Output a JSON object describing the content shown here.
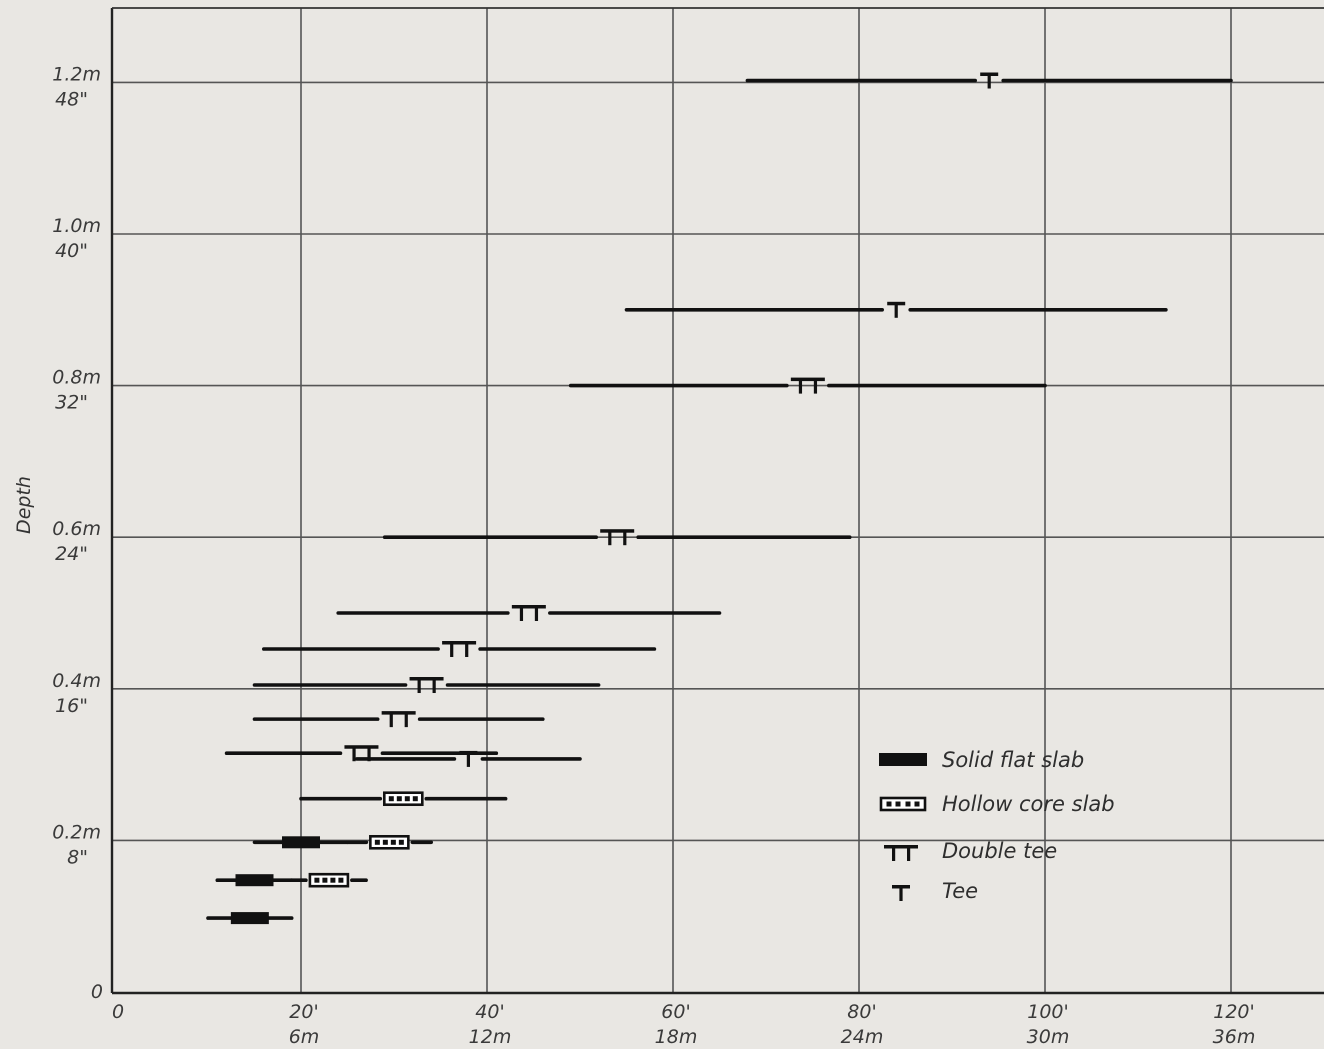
{
  "chart_data": {
    "type": "range",
    "ylabel": "Depth",
    "grid": true,
    "legend_position": "bottom-right",
    "x_ticks": [
      {
        "value": 0,
        "imperial": "0",
        "metric": ""
      },
      {
        "value": 20,
        "imperial": "20'",
        "metric": "6m"
      },
      {
        "value": 40,
        "imperial": "40'",
        "metric": "12m"
      },
      {
        "value": 60,
        "imperial": "60'",
        "metric": "18m"
      },
      {
        "value": 80,
        "imperial": "80'",
        "metric": "24m"
      },
      {
        "value": 100,
        "imperial": "100'",
        "metric": "30m"
      },
      {
        "value": 120,
        "imperial": "120'",
        "metric": "36m"
      }
    ],
    "y_ticks": [
      {
        "value": 0,
        "metric": "0",
        "imperial": ""
      },
      {
        "value": 8,
        "metric": "0.2m",
        "imperial": "8\""
      },
      {
        "value": 16,
        "metric": "0.4m",
        "imperial": "16\""
      },
      {
        "value": 24,
        "metric": "0.6m",
        "imperial": "24\""
      },
      {
        "value": 32,
        "metric": "0.8m",
        "imperial": "32\""
      },
      {
        "value": 40,
        "metric": "1.0m",
        "imperial": "40\""
      },
      {
        "value": 48,
        "metric": "1.2m",
        "imperial": "48\""
      }
    ],
    "xlim": [
      0,
      127
    ],
    "ylim": [
      0,
      50
    ],
    "legend": [
      {
        "type": "solid",
        "label": "Solid flat slab"
      },
      {
        "type": "hollow",
        "label": "Hollow core slab"
      },
      {
        "type": "doubletee",
        "label": "Double tee"
      },
      {
        "type": "tee",
        "label": "Tee"
      }
    ],
    "ranges": [
      {
        "type": "solid",
        "depth": 3.9,
        "x_start": 10,
        "x_end": 19
      },
      {
        "type": "solid",
        "depth": 5.9,
        "x_start": 11,
        "x_end": 19
      },
      {
        "type": "hollow",
        "depth": 5.9,
        "x_start": 19,
        "x_end": 27
      },
      {
        "type": "solid",
        "depth": 7.9,
        "x_start": 15,
        "x_end": 25
      },
      {
        "type": "hollow",
        "depth": 7.9,
        "x_start": 25,
        "x_end": 34
      },
      {
        "type": "hollow",
        "depth": 10.2,
        "x_start": 20,
        "x_end": 42
      },
      {
        "type": "tee",
        "depth": 12.3,
        "x_start": 26,
        "x_end": 50
      },
      {
        "type": "doubletee",
        "depth": 12.6,
        "x_start": 12,
        "x_end": 41
      },
      {
        "type": "doubletee",
        "depth": 14.4,
        "x_start": 15,
        "x_end": 46
      },
      {
        "type": "doubletee",
        "depth": 16.2,
        "x_start": 15,
        "x_end": 52
      },
      {
        "type": "doubletee",
        "depth": 18.1,
        "x_start": 16,
        "x_end": 58
      },
      {
        "type": "doubletee",
        "depth": 20.0,
        "x_start": 24,
        "x_end": 65
      },
      {
        "type": "doubletee",
        "depth": 24.0,
        "x_start": 29,
        "x_end": 79
      },
      {
        "type": "doubletee",
        "depth": 32.0,
        "x_start": 49,
        "x_end": 100
      },
      {
        "type": "tee",
        "depth": 36.0,
        "x_start": 55,
        "x_end": 113
      },
      {
        "type": "tee",
        "depth": 48.1,
        "x_start": 68,
        "x_end": 120
      }
    ]
  }
}
